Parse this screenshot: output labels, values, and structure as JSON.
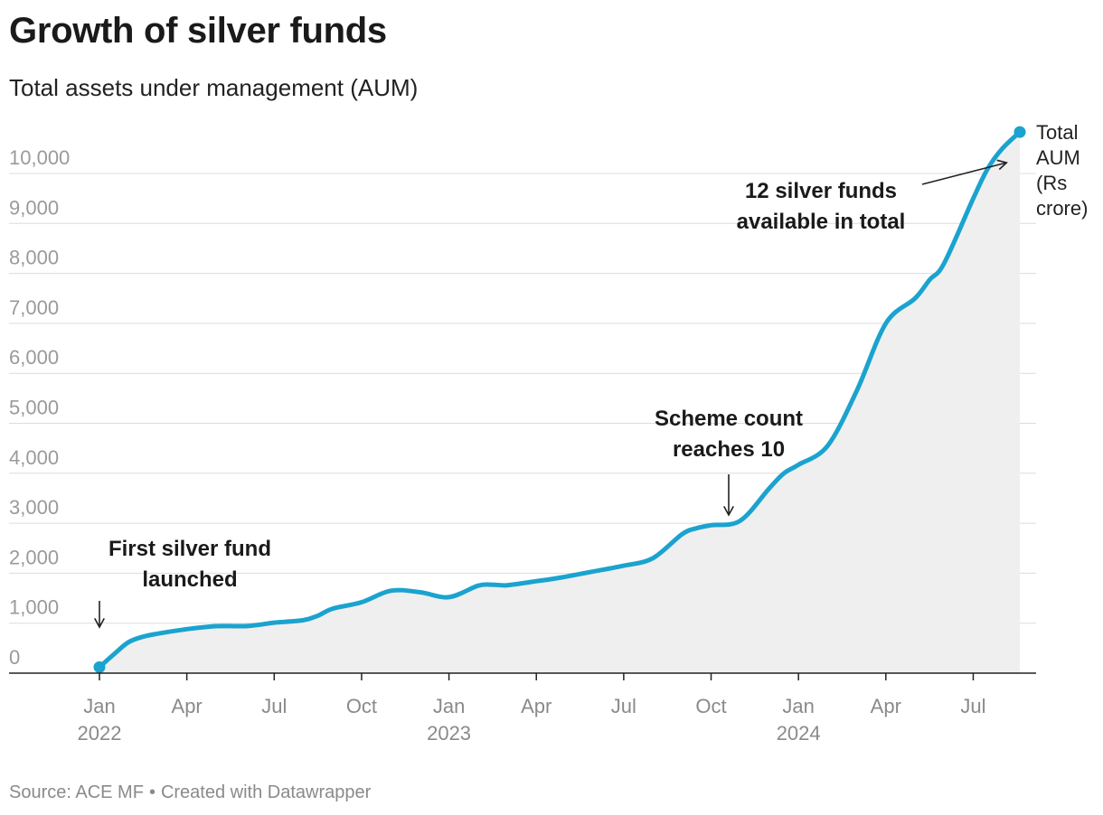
{
  "header": {
    "title": "Growth of silver funds",
    "subtitle": "Total assets under management (AUM)"
  },
  "footer": {
    "source": "Source: ACE MF",
    "separator": "•",
    "credit": "Created with Datawrapper"
  },
  "colors": {
    "line": "#1ba3cf",
    "area": "#efefef"
  },
  "chart_data": {
    "type": "area",
    "title": "Growth of silver funds",
    "subtitle": "Total assets under management (AUM)",
    "xlabel": "",
    "ylabel": "",
    "ylim": [
      0,
      10000
    ],
    "yticks": [
      "0",
      "1,000",
      "2,000",
      "3,000",
      "4,000",
      "5,000",
      "6,000",
      "7,000",
      "8,000",
      "9,000",
      "10,000"
    ],
    "xticks": [
      {
        "m": 0,
        "label": "Jan",
        "year": "2022"
      },
      {
        "m": 3,
        "label": "Apr",
        "year": ""
      },
      {
        "m": 6,
        "label": "Jul",
        "year": ""
      },
      {
        "m": 9,
        "label": "Oct",
        "year": ""
      },
      {
        "m": 12,
        "label": "Jan",
        "year": "2023"
      },
      {
        "m": 15,
        "label": "Apr",
        "year": ""
      },
      {
        "m": 18,
        "label": "Jul",
        "year": ""
      },
      {
        "m": 21,
        "label": "Oct",
        "year": ""
      },
      {
        "m": 24,
        "label": "Jan",
        "year": "2024"
      },
      {
        "m": 27,
        "label": "Apr",
        "year": ""
      },
      {
        "m": 30,
        "label": "Jul",
        "year": ""
      }
    ],
    "series": [
      {
        "name": "Total AUM (Rs crore)",
        "end_label": [
          "Total",
          "AUM",
          "(Rs",
          "crore)"
        ],
        "x": [
          0,
          0.5,
          1,
          1.5,
          2,
          3,
          4,
          5,
          5.5,
          6,
          7,
          7.5,
          8,
          9,
          10,
          11,
          12,
          13,
          13.5,
          14,
          15,
          15.5,
          16,
          17,
          18,
          19,
          20,
          20.5,
          21,
          22,
          23,
          23.5,
          24,
          25,
          26,
          27,
          28,
          28.5,
          29,
          30,
          30.5,
          31,
          31.6
        ],
        "values": [
          120,
          380,
          620,
          730,
          790,
          880,
          940,
          940,
          970,
          1010,
          1060,
          1150,
          1290,
          1420,
          1650,
          1620,
          1520,
          1750,
          1770,
          1760,
          1840,
          1880,
          1930,
          2040,
          2150,
          2300,
          2780,
          2900,
          2960,
          3050,
          3700,
          4000,
          4170,
          4550,
          5650,
          7000,
          7500,
          7870,
          8200,
          9500,
          10100,
          10500,
          10830
        ]
      }
    ],
    "annotations": [
      {
        "lines": [
          "First silver fund",
          "launched"
        ],
        "target_m": 0,
        "target_v": 650
      },
      {
        "lines": [
          "Scheme count",
          "reaches 10"
        ],
        "target_m": 22,
        "target_v": 3100
      },
      {
        "lines": [
          "12 silver funds",
          "available in total"
        ],
        "target_m": 31.3,
        "target_v": 10250
      }
    ]
  }
}
